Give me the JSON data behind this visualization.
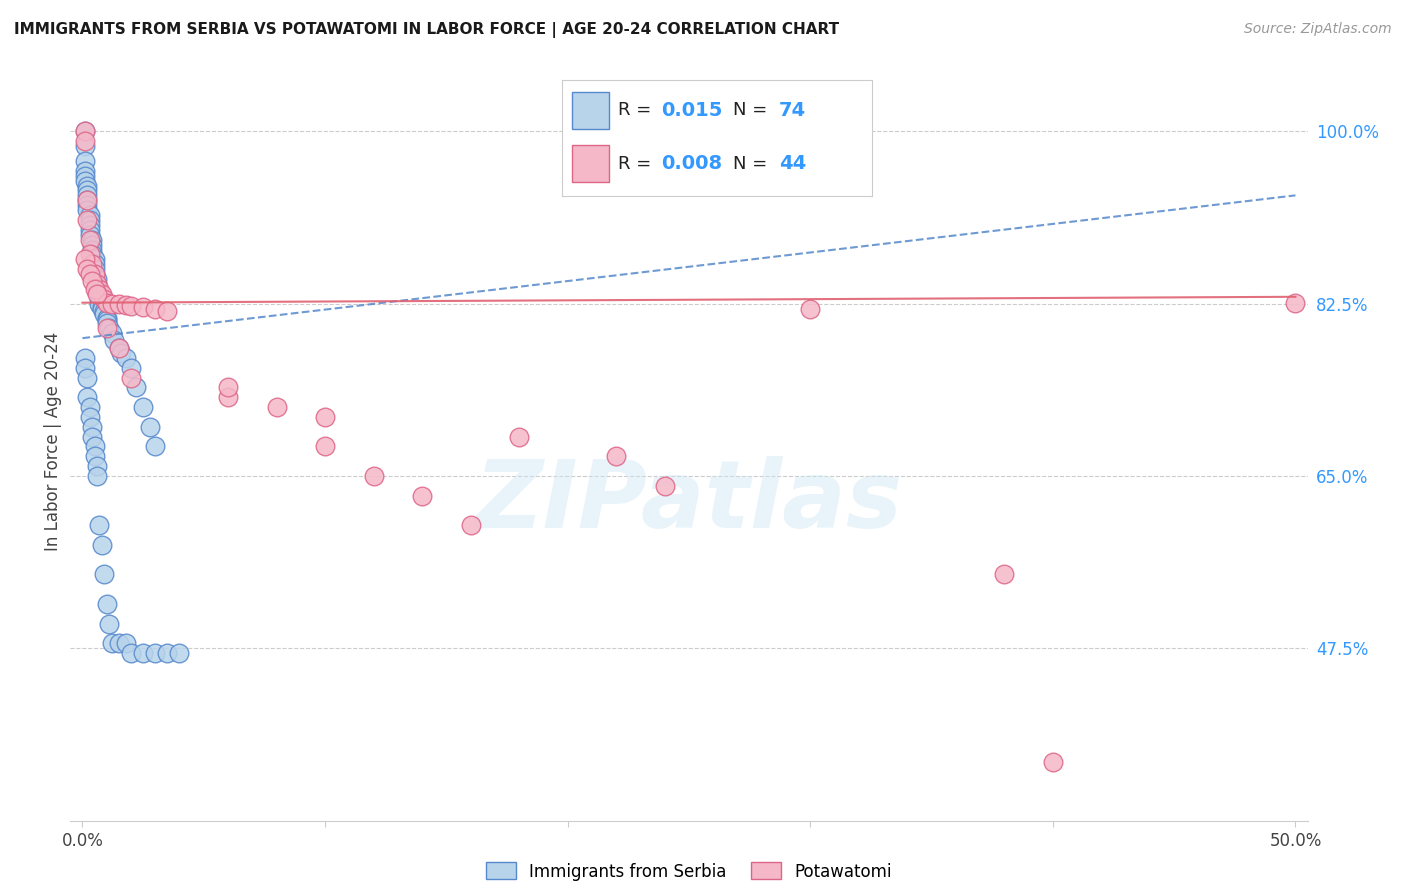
{
  "title": "IMMIGRANTS FROM SERBIA VS POTAWATOMI IN LABOR FORCE | AGE 20-24 CORRELATION CHART",
  "source": "Source: ZipAtlas.com",
  "ylabel": "In Labor Force | Age 20-24",
  "xlim": [
    -0.005,
    0.505
  ],
  "ylim": [
    0.3,
    1.07
  ],
  "xticks": [
    0.0,
    0.1,
    0.2,
    0.3,
    0.4,
    0.5
  ],
  "xticklabels": [
    "0.0%",
    "",
    "",
    "",
    "",
    "50.0%"
  ],
  "yticks_right": [
    0.475,
    0.65,
    0.825,
    1.0
  ],
  "yticklabels_right": [
    "47.5%",
    "65.0%",
    "82.5%",
    "100.0%"
  ],
  "serbia_color": "#b8d4ea",
  "serbia_edge": "#5588cc",
  "potawatomi_color": "#f5b8c8",
  "potawatomi_edge": "#dd6688",
  "serbia_trend_color": "#5588cc",
  "potawatomi_trend_color": "#e06070",
  "serbia_trend": [
    0.0,
    0.79,
    0.5,
    0.935
  ],
  "potawatomi_trend": [
    0.0,
    0.826,
    0.5,
    0.832
  ],
  "serbia_x": [
    0.001,
    0.001,
    0.001,
    0.001,
    0.001,
    0.001,
    0.002,
    0.002,
    0.002,
    0.002,
    0.002,
    0.002,
    0.003,
    0.003,
    0.003,
    0.003,
    0.003,
    0.004,
    0.004,
    0.004,
    0.004,
    0.005,
    0.005,
    0.005,
    0.005,
    0.006,
    0.006,
    0.006,
    0.007,
    0.007,
    0.007,
    0.008,
    0.008,
    0.009,
    0.009,
    0.01,
    0.01,
    0.01,
    0.011,
    0.012,
    0.013,
    0.015,
    0.016,
    0.018,
    0.02,
    0.022,
    0.025,
    0.028,
    0.03,
    0.001,
    0.001,
    0.002,
    0.002,
    0.003,
    0.003,
    0.004,
    0.004,
    0.005,
    0.005,
    0.006,
    0.006,
    0.007,
    0.008,
    0.009,
    0.01,
    0.011,
    0.012,
    0.015,
    0.018,
    0.02,
    0.025,
    0.03,
    0.035,
    0.04
  ],
  "serbia_y": [
    1.0,
    0.985,
    0.97,
    0.96,
    0.955,
    0.95,
    0.945,
    0.94,
    0.935,
    0.93,
    0.925,
    0.92,
    0.915,
    0.91,
    0.905,
    0.9,
    0.895,
    0.89,
    0.885,
    0.88,
    0.875,
    0.87,
    0.865,
    0.86,
    0.855,
    0.85,
    0.845,
    0.84,
    0.835,
    0.83,
    0.825,
    0.822,
    0.82,
    0.818,
    0.815,
    0.81,
    0.808,
    0.805,
    0.8,
    0.795,
    0.788,
    0.78,
    0.775,
    0.77,
    0.76,
    0.74,
    0.72,
    0.7,
    0.68,
    0.77,
    0.76,
    0.75,
    0.73,
    0.72,
    0.71,
    0.7,
    0.69,
    0.68,
    0.67,
    0.66,
    0.65,
    0.6,
    0.58,
    0.55,
    0.52,
    0.5,
    0.48,
    0.48,
    0.48,
    0.47,
    0.47,
    0.47,
    0.47,
    0.47
  ],
  "potawatomi_x": [
    0.001,
    0.001,
    0.002,
    0.002,
    0.003,
    0.003,
    0.004,
    0.005,
    0.006,
    0.007,
    0.008,
    0.009,
    0.01,
    0.012,
    0.015,
    0.018,
    0.02,
    0.025,
    0.03,
    0.035,
    0.001,
    0.002,
    0.003,
    0.004,
    0.005,
    0.006,
    0.01,
    0.015,
    0.02,
    0.06,
    0.1,
    0.18,
    0.22,
    0.24,
    0.5,
    0.3,
    0.06,
    0.08,
    0.1,
    0.12,
    0.14,
    0.16,
    0.38,
    0.4
  ],
  "potawatomi_y": [
    1.0,
    0.99,
    0.93,
    0.91,
    0.89,
    0.875,
    0.865,
    0.855,
    0.845,
    0.84,
    0.835,
    0.83,
    0.826,
    0.825,
    0.825,
    0.824,
    0.823,
    0.822,
    0.82,
    0.818,
    0.87,
    0.86,
    0.855,
    0.848,
    0.84,
    0.835,
    0.8,
    0.78,
    0.75,
    0.73,
    0.71,
    0.69,
    0.67,
    0.64,
    0.826,
    0.82,
    0.74,
    0.72,
    0.68,
    0.65,
    0.63,
    0.6,
    0.55,
    0.36
  ],
  "watermark_text": "ZIPatlas",
  "legend_R_label": "R = ",
  "legend_N_label": "N = ",
  "serbia_R_val": "0.015",
  "serbia_N_val": "74",
  "potawatomi_R_val": "0.008",
  "potawatomi_N_val": "44"
}
